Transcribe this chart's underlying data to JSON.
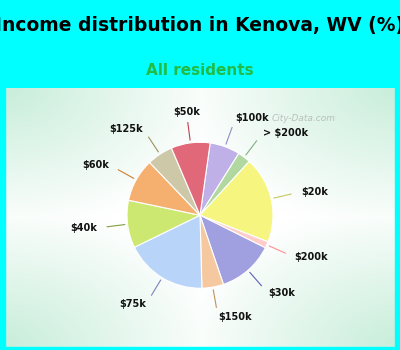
{
  "title": "Income distribution in Kenova, WV (%)",
  "subtitle": "All residents",
  "bg_cyan": "#00FFFF",
  "labels": [
    "$100k",
    "> $200k",
    "$20k",
    "$200k",
    "$30k",
    "$150k",
    "$75k",
    "$40k",
    "$60k",
    "$125k",
    "$50k"
  ],
  "sizes": [
    7,
    3,
    20,
    1.5,
    13,
    5,
    19,
    11,
    10,
    6,
    9
  ],
  "colors": [
    "#c0b0e8",
    "#b0d8a0",
    "#f5f580",
    "#ffcccc",
    "#a0a0e0",
    "#f5c8a0",
    "#b8d4f8",
    "#cce870",
    "#f5b070",
    "#ccc8a8",
    "#e06878"
  ],
  "title_fontsize": 13.5,
  "subtitle_fontsize": 11,
  "subtitle_color": "#22bb44",
  "watermark": "City-Data.com"
}
